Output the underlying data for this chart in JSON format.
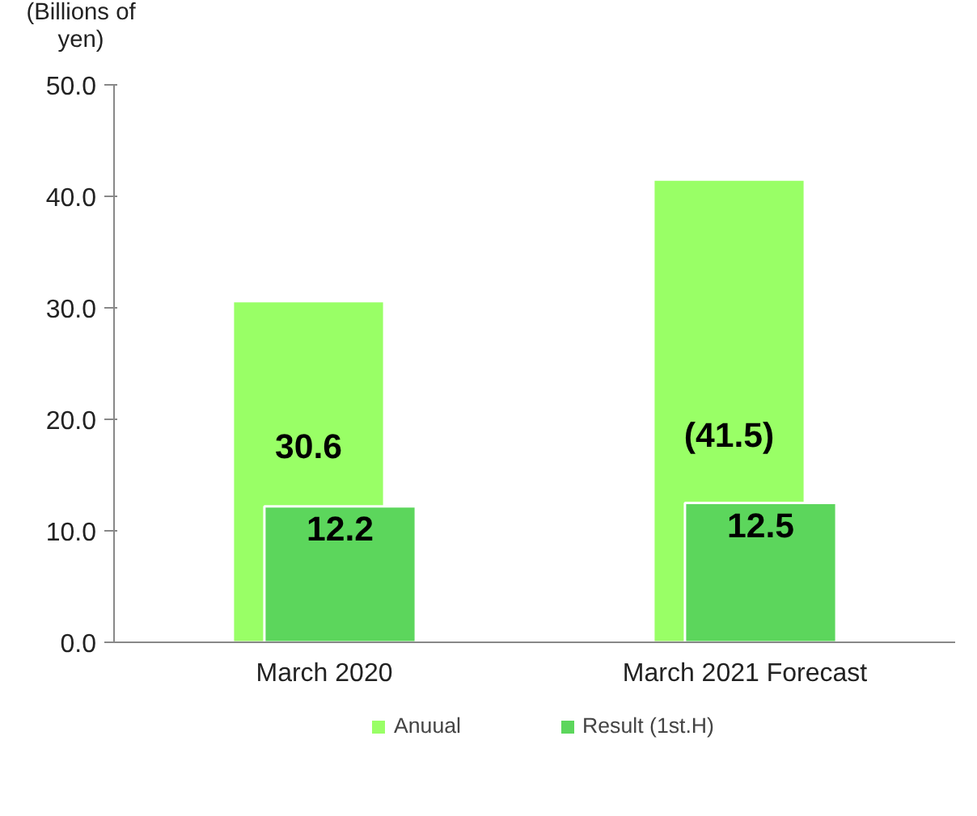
{
  "chart_data": {
    "type": "bar",
    "ylabel": "(Billions of\nyen)",
    "categories": [
      "March 2020",
      "March 2021 Forecast"
    ],
    "series": [
      {
        "name": "Anuual",
        "color": "#99ff66",
        "values": [
          30.6,
          41.5
        ],
        "value_labels": [
          "30.6",
          "(41.5)"
        ]
      },
      {
        "name": "Result (1st.H)",
        "color": "#5cd65c",
        "values": [
          12.2,
          12.5
        ],
        "value_labels": [
          "12.2",
          "12.5"
        ]
      }
    ],
    "ylim": [
      0,
      50
    ],
    "yticks": [
      {
        "value": 0,
        "label": "0.0"
      },
      {
        "value": 10,
        "label": "10.0"
      },
      {
        "value": 20,
        "label": "20.0"
      },
      {
        "value": 30,
        "label": "30.0"
      },
      {
        "value": 40,
        "label": "40.0"
      },
      {
        "value": 50,
        "label": "50.0"
      }
    ],
    "grid": false,
    "legend": "bottom"
  }
}
